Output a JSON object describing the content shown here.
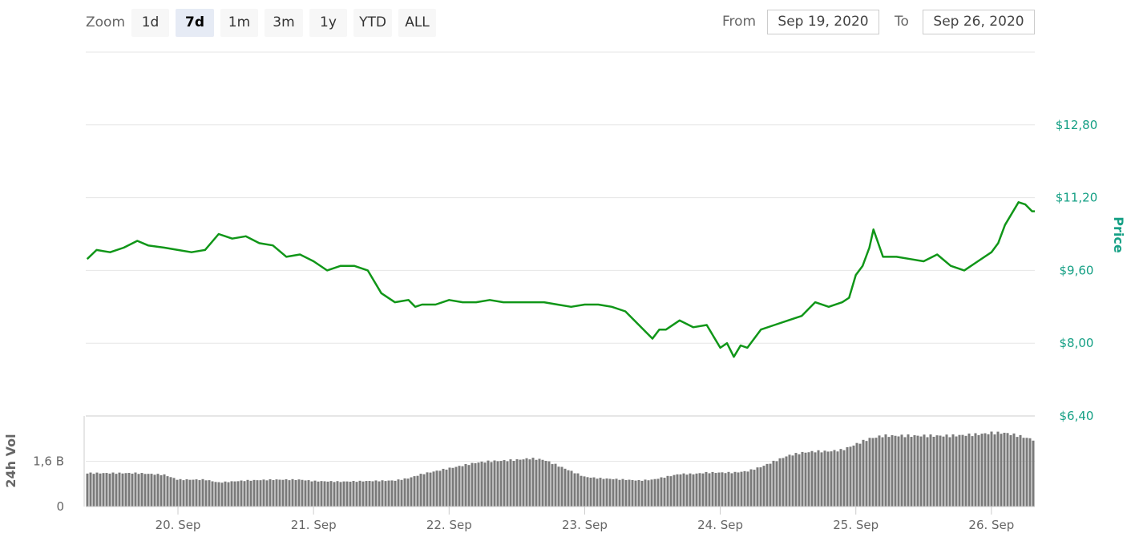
{
  "toolbar": {
    "zoom_label": "Zoom",
    "zoom_buttons": [
      "1d",
      "7d",
      "1m",
      "3m",
      "1y",
      "YTD",
      "ALL"
    ],
    "active_zoom": "7d",
    "from_label": "From",
    "from_value": "Sep 19, 2020",
    "to_label": "To",
    "to_value": "Sep 26, 2020"
  },
  "colors": {
    "price_line": "#109618",
    "volume_bar": "#7a7a7a",
    "grid": "#e6e6e6",
    "accent": "#16a085"
  },
  "chart_data": [
    {
      "type": "line",
      "ylabel": "Price",
      "ylim": [
        6.4,
        14.4
      ],
      "yticks": [
        6.4,
        8.0,
        9.6,
        11.2,
        12.8
      ],
      "ytick_labels": [
        "$6,40",
        "$8,00",
        "$9,60",
        "$11,20",
        "$12,80"
      ],
      "xlim": [
        19.32,
        26.32
      ],
      "xticks": [
        20,
        21,
        22,
        23,
        24,
        25,
        26
      ],
      "xtick_labels": [
        "20. Sep",
        "21. Sep",
        "22. Sep",
        "23. Sep",
        "24. Sep",
        "25. Sep",
        "26. Sep"
      ],
      "grid": true,
      "series": [
        {
          "x": [
            19.33,
            19.4,
            19.5,
            19.6,
            19.7,
            19.78,
            19.9,
            20.0,
            20.1,
            20.2,
            20.3,
            20.35,
            20.4,
            20.5,
            20.6,
            20.7,
            20.8,
            20.9,
            21.0,
            21.1,
            21.2,
            21.3,
            21.4,
            21.5,
            21.6,
            21.7,
            21.75,
            21.8,
            21.9,
            22.0,
            22.1,
            22.2,
            22.3,
            22.4,
            22.5,
            22.6,
            22.7,
            22.8,
            22.9,
            23.0,
            23.1,
            23.2,
            23.3,
            23.4,
            23.5,
            23.55,
            23.6,
            23.7,
            23.8,
            23.9,
            24.0,
            24.05,
            24.1,
            24.15,
            24.2,
            24.25,
            24.3,
            24.4,
            24.5,
            24.6,
            24.7,
            24.8,
            24.9,
            24.95,
            25.0,
            25.05,
            25.1,
            25.13,
            25.2,
            25.3,
            25.4,
            25.5,
            25.6,
            25.7,
            25.8,
            25.9,
            26.0,
            26.05,
            26.1,
            26.2,
            26.25,
            26.3,
            26.32
          ],
          "y": [
            9.85,
            10.05,
            10.0,
            10.1,
            10.25,
            10.15,
            10.1,
            10.05,
            10.0,
            10.05,
            10.4,
            10.35,
            10.3,
            10.35,
            10.2,
            10.15,
            9.9,
            9.95,
            9.8,
            9.6,
            9.7,
            9.7,
            9.6,
            9.1,
            8.9,
            8.95,
            8.8,
            8.85,
            8.85,
            8.95,
            8.9,
            8.9,
            8.95,
            8.9,
            8.9,
            8.9,
            8.9,
            8.85,
            8.8,
            8.85,
            8.85,
            8.8,
            8.7,
            8.4,
            8.1,
            8.3,
            8.3,
            8.5,
            8.35,
            8.4,
            7.9,
            8.0,
            7.7,
            7.95,
            7.9,
            8.1,
            8.3,
            8.4,
            8.5,
            8.6,
            8.9,
            8.8,
            8.9,
            9.0,
            9.5,
            9.7,
            10.1,
            10.5,
            9.9,
            9.9,
            9.85,
            9.8,
            9.95,
            9.7,
            9.6,
            9.8,
            10.0,
            10.2,
            10.6,
            11.1,
            11.05,
            10.9,
            10.9
          ]
        }
      ]
    },
    {
      "type": "bar",
      "ylabel": "24h Vol",
      "ylim": [
        0,
        3.2
      ],
      "yticks": [
        0,
        1.6
      ],
      "ytick_labels": [
        "0",
        "1,6 B"
      ],
      "grid": true,
      "series": [
        {
          "x": [
            19.33,
            19.5,
            19.7,
            19.9,
            20.0,
            20.2,
            20.3,
            20.5,
            20.7,
            20.9,
            21.0,
            21.2,
            21.4,
            21.6,
            21.7,
            21.8,
            21.9,
            22.0,
            22.1,
            22.2,
            22.3,
            22.4,
            22.5,
            22.6,
            22.7,
            22.8,
            22.9,
            23.0,
            23.1,
            23.3,
            23.4,
            23.5,
            23.6,
            23.7,
            23.8,
            23.9,
            24.0,
            24.1,
            24.2,
            24.3,
            24.4,
            24.5,
            24.6,
            24.7,
            24.8,
            24.9,
            25.0,
            25.1,
            25.2,
            25.3,
            25.5,
            25.7,
            25.9,
            26.0,
            26.1,
            26.2,
            26.32
          ],
          "y": [
            1.18,
            1.18,
            1.18,
            1.12,
            0.95,
            0.95,
            0.85,
            0.92,
            0.95,
            0.95,
            0.9,
            0.88,
            0.9,
            0.92,
            1.0,
            1.15,
            1.25,
            1.35,
            1.45,
            1.55,
            1.6,
            1.62,
            1.65,
            1.7,
            1.65,
            1.45,
            1.25,
            1.05,
            1.0,
            0.95,
            0.92,
            0.95,
            1.05,
            1.15,
            1.15,
            1.2,
            1.2,
            1.2,
            1.25,
            1.4,
            1.6,
            1.8,
            1.9,
            1.95,
            1.95,
            2.0,
            2.2,
            2.4,
            2.5,
            2.5,
            2.5,
            2.5,
            2.55,
            2.6,
            2.6,
            2.5,
            2.35
          ]
        }
      ]
    }
  ]
}
